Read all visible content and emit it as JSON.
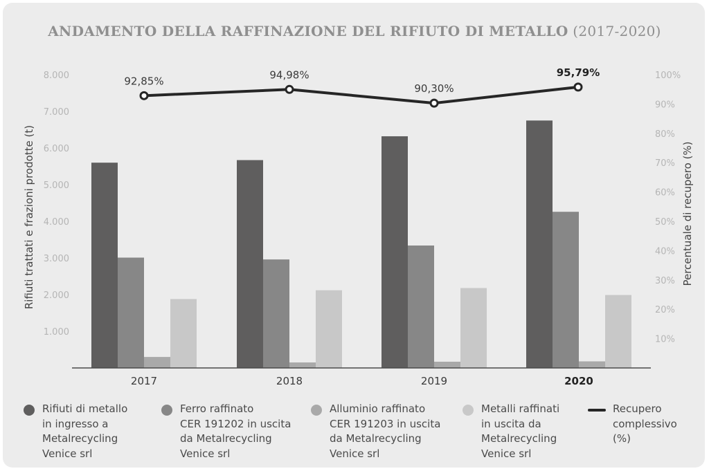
{
  "title": {
    "main": "ANDAMENTO DELLA RAFFINAZIONE DEL RIFIUTO DI METALLO",
    "sub": "(2017-2020)"
  },
  "chart_data": {
    "type": "bar",
    "categories": [
      "2017",
      "2018",
      "2019",
      "2020"
    ],
    "highlight_category": "2020",
    "ylabel": "Rifiuti trattati e frazioni prodotte (t)",
    "ylim": [
      0,
      8000
    ],
    "yticks": [
      "1.000",
      "2.000",
      "3.000",
      "4.000",
      "5.000",
      "6.000",
      "7.000",
      "8.000"
    ],
    "y2label": "Percentuale di recupero (%)",
    "y2lim": [
      0,
      100
    ],
    "y2ticks": [
      "10%",
      "20%",
      "30%",
      "40%",
      "50%",
      "60%",
      "70%",
      "80%",
      "90%",
      "100%"
    ],
    "grid": false,
    "legend_position": "bottom",
    "series": [
      {
        "name": "Rifiuti di metallo\nin ingresso a\nMetalrecycling\nVenice srl",
        "color": "#5f5e5e",
        "values": [
          5600,
          5670,
          6320,
          6750
        ]
      },
      {
        "name": "Ferro raffinato\nCER 191202 in uscita\nda Metalrecycling\nVenice srl",
        "color": "#878787",
        "values": [
          3010,
          2960,
          3340,
          4260
        ]
      },
      {
        "name": "Alluminio raffinato\nCER 191203 in uscita\nda Metalrecycling\nVenice srl",
        "color": "#a9a9a9",
        "values": [
          300,
          150,
          170,
          180
        ]
      },
      {
        "name": "Metalli raffinati\nin uscita da\nMetalrecycling\nVenice srl",
        "color": "#c8c8c8",
        "values": [
          1880,
          2120,
          2180,
          1990
        ]
      }
    ],
    "line_series": {
      "name": "Recupero\ncomplessivo\n(%)",
      "axis": "right",
      "color": "#262626",
      "values": [
        92.85,
        94.98,
        90.3,
        95.79
      ],
      "labels": [
        "92,85%",
        "94,98%",
        "90,30%",
        "95,79%"
      ]
    }
  }
}
